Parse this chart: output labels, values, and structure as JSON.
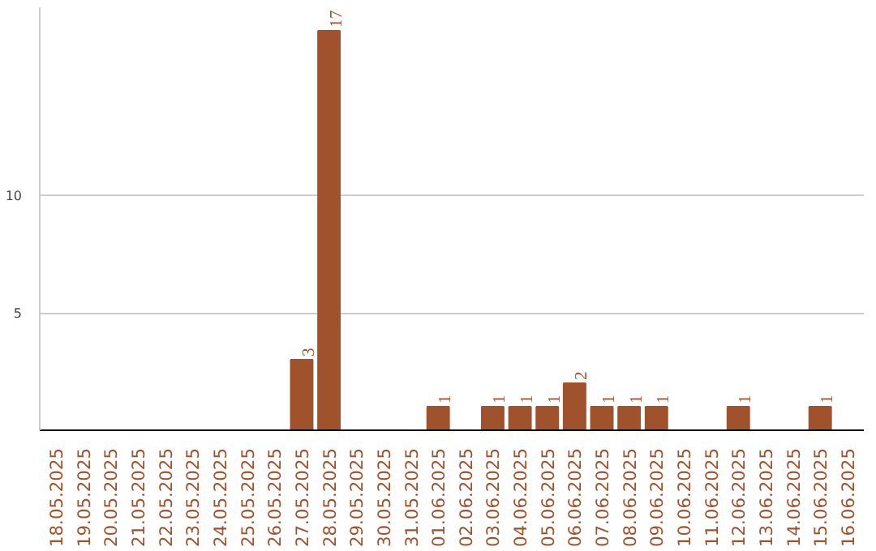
{
  "chart_data": {
    "type": "bar",
    "categories": [
      "18.05.2025",
      "19.05.2025",
      "20.05.2025",
      "21.05.2025",
      "22.05.2025",
      "23.05.2025",
      "24.05.2025",
      "25.05.2025",
      "26.05.2025",
      "27.05.2025",
      "28.05.2025",
      "29.05.2025",
      "30.05.2025",
      "31.05.2025",
      "01.06.2025",
      "02.06.2025",
      "03.06.2025",
      "04.06.2025",
      "05.06.2025",
      "06.06.2025",
      "07.06.2025",
      "08.06.2025",
      "09.06.2025",
      "10.06.2025",
      "11.06.2025",
      "12.06.2025",
      "13.06.2025",
      "14.06.2025",
      "15.06.2025",
      "16.06.2025"
    ],
    "values": [
      0,
      0,
      0,
      0,
      0,
      0,
      0,
      0,
      0,
      3,
      17,
      0,
      0,
      0,
      1,
      0,
      1,
      1,
      1,
      2,
      1,
      1,
      1,
      0,
      0,
      1,
      0,
      0,
      1,
      0
    ],
    "value_labels": [
      null,
      null,
      null,
      null,
      null,
      null,
      null,
      null,
      null,
      "3",
      "17",
      null,
      null,
      null,
      "1",
      null,
      "1",
      "1",
      "1",
      "2",
      "1",
      "1",
      "1",
      null,
      null,
      "1",
      null,
      null,
      "1",
      null
    ],
    "color": "#a0522d",
    "ylim": [
      0,
      18
    ],
    "yticks": [
      5,
      10
    ],
    "grid": "y"
  }
}
